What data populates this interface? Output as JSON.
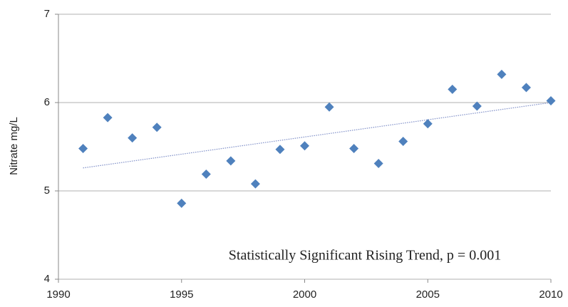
{
  "chart_data": {
    "type": "scatter",
    "y_label": "Nitrate mg/L",
    "annotation": "Statistically Significant Rising Trend, p = 0.001",
    "x": [
      1991,
      1992,
      1993,
      1994,
      1995,
      1996,
      1997,
      1998,
      1999,
      2000,
      2001,
      2002,
      2003,
      2004,
      2005,
      2006,
      2007,
      2008,
      2009,
      2010
    ],
    "values": [
      5.48,
      5.83,
      5.6,
      5.72,
      4.86,
      5.19,
      5.34,
      5.08,
      5.47,
      5.51,
      5.95,
      5.48,
      5.31,
      5.56,
      5.76,
      6.15,
      5.96,
      6.32,
      6.17,
      6.02
    ],
    "color": "#4f81bd",
    "trendline": {
      "x": [
        1991,
        2010
      ],
      "values": [
        5.26,
        6.0
      ],
      "color": "#7f8fc8"
    },
    "xlim": [
      1990,
      2010
    ],
    "xticks": [
      1990,
      1995,
      2000,
      2005,
      2010
    ],
    "ylim": [
      4,
      7
    ],
    "yticks": [
      4,
      5,
      6,
      7
    ],
    "grid": true
  }
}
